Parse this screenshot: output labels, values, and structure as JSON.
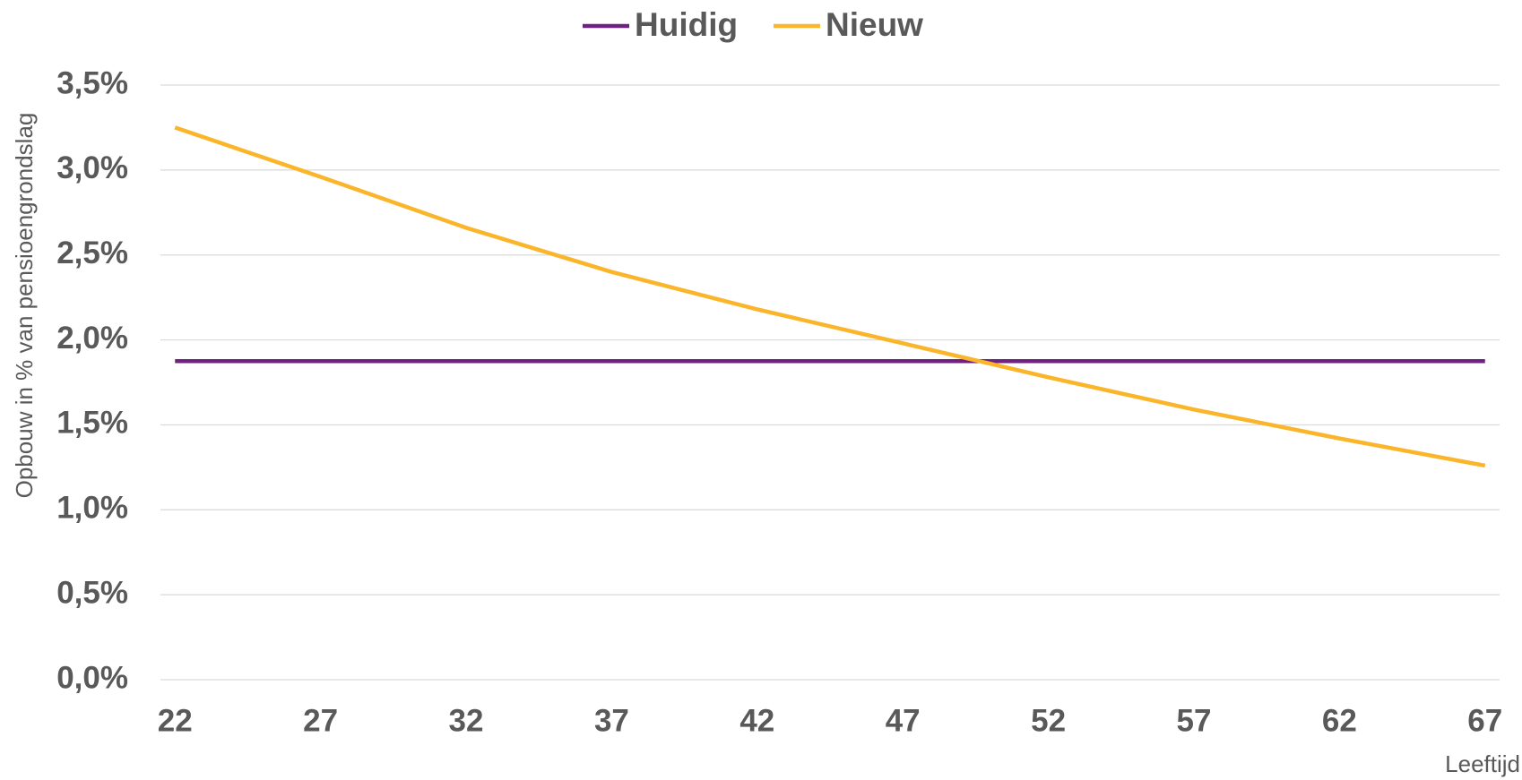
{
  "chart_data": {
    "type": "line",
    "x_label": "Leeftijd",
    "y_label": "Opbouw in % van pensioengrondslag",
    "x": [
      22,
      27,
      32,
      37,
      42,
      47,
      52,
      57,
      62,
      67
    ],
    "series": [
      {
        "name": "Huidig",
        "color": "#6f2280",
        "values": [
          1.875,
          1.875,
          1.875,
          1.875,
          1.875,
          1.875,
          1.875,
          1.875,
          1.875,
          1.875
        ]
      },
      {
        "name": "Nieuw",
        "color": "#fbb52b",
        "values": [
          3.25,
          2.96,
          2.66,
          2.4,
          2.18,
          1.98,
          1.78,
          1.59,
          1.42,
          1.26
        ]
      }
    ],
    "xlim": [
      21.5,
      67.5
    ],
    "xticks": [
      22,
      27,
      32,
      37,
      42,
      47,
      52,
      57,
      62,
      67
    ],
    "ylim": [
      0,
      3.5
    ],
    "yticks": [
      {
        "value": 0,
        "label": "0,0%"
      },
      {
        "value": 0.5,
        "label": "0,5%"
      },
      {
        "value": 1,
        "label": "1,0%"
      },
      {
        "value": 1.5,
        "label": "1,5%"
      },
      {
        "value": 2,
        "label": "2,0%"
      },
      {
        "value": 2.5,
        "label": "2,5%"
      },
      {
        "value": 3,
        "label": "3,0%"
      },
      {
        "value": 3.5,
        "label": "3,5%"
      }
    ],
    "grid": true,
    "legend": "top"
  }
}
